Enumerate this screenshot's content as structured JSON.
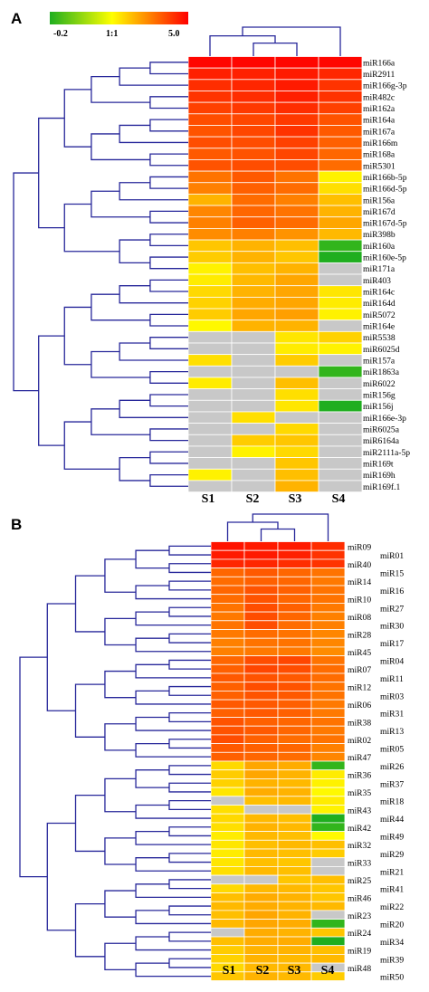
{
  "chart_data": [
    {
      "type": "heatmap",
      "panel": "A",
      "columns": [
        "S1",
        "S2",
        "S3",
        "S4"
      ],
      "color_scale": {
        "ticks": [
          "-0.2",
          "1:1",
          "5.0"
        ],
        "range": [
          -0.2,
          5.0
        ],
        "mid": 1.0,
        "colors": [
          "#1fae1f",
          "#ffff00",
          "#ff0000"
        ],
        "missing_color": "#c8c8c8"
      },
      "rows": [
        "miR166a",
        "miR2911",
        "miR166g-3p",
        "miR482c",
        "miR162a",
        "miR164a",
        "miR167a",
        "miR166m",
        "miR168a",
        "miR5301",
        "miR166b-5p",
        "miR166d-5p",
        "miR156a",
        "miR167d",
        "miR167d-5p",
        "miR398b",
        "miR160a",
        "miR160e-5p",
        "miR171a",
        "miR403",
        "miR164c",
        "miR164d",
        "miR5072",
        "miR164e",
        "miR5538",
        "miR6025d",
        "miR157a",
        "miR1863a",
        "miR6022",
        "miR156g",
        "miR156j",
        "miR166e-3p",
        "miR6025a",
        "miR6164a",
        "miR2111a-5p",
        "miR169t",
        "miR169h",
        "miR169f.1"
      ],
      "values": [
        [
          4.9,
          4.9,
          4.9,
          4.9
        ],
        [
          4.5,
          4.5,
          4.6,
          4.4
        ],
        [
          4.3,
          4.4,
          4.6,
          4.2
        ],
        [
          4.2,
          4.3,
          4.5,
          4.2
        ],
        [
          4.0,
          4.1,
          4.3,
          4.0
        ],
        [
          3.8,
          3.9,
          4.1,
          3.7
        ],
        [
          3.7,
          3.9,
          4.2,
          3.6
        ],
        [
          3.8,
          3.8,
          4.0,
          3.5
        ],
        [
          3.6,
          3.7,
          3.9,
          3.4
        ],
        [
          3.7,
          3.8,
          3.8,
          3.3
        ],
        [
          3.2,
          3.6,
          3.2,
          1.2
        ],
        [
          3.0,
          3.5,
          3.3,
          1.5
        ],
        [
          2.2,
          3.3,
          3.0,
          2.0
        ],
        [
          2.9,
          3.4,
          3.2,
          2.2
        ],
        [
          3.0,
          3.5,
          3.3,
          2.4
        ],
        [
          2.8,
          3.0,
          2.7,
          2.1
        ],
        [
          1.9,
          2.2,
          2.0,
          -0.1
        ],
        [
          1.8,
          2.2,
          1.9,
          -0.2
        ],
        [
          1.2,
          2.0,
          2.2,
          null
        ],
        [
          1.3,
          2.1,
          2.4,
          null
        ],
        [
          1.6,
          2.2,
          2.4,
          1.4
        ],
        [
          1.7,
          2.3,
          2.4,
          1.3
        ],
        [
          1.8,
          2.4,
          2.5,
          1.2
        ],
        [
          1.1,
          2.2,
          2.2,
          null
        ],
        [
          null,
          null,
          1.4,
          1.7
        ],
        [
          null,
          null,
          1.3,
          1.2
        ],
        [
          1.5,
          null,
          1.8,
          null
        ],
        [
          null,
          null,
          null,
          -0.1
        ],
        [
          1.3,
          null,
          2.0,
          null
        ],
        [
          null,
          null,
          1.5,
          null
        ],
        [
          null,
          null,
          1.4,
          -0.2
        ],
        [
          null,
          1.5,
          null,
          null
        ],
        [
          null,
          null,
          1.6,
          null
        ],
        [
          null,
          1.8,
          1.9,
          null
        ],
        [
          null,
          1.2,
          1.6,
          null
        ],
        [
          null,
          null,
          1.9,
          null
        ],
        [
          1.2,
          null,
          2.0,
          null
        ],
        [
          null,
          null,
          2.2,
          null
        ]
      ]
    },
    {
      "type": "heatmap",
      "panel": "B",
      "columns": [
        "S1",
        "S2",
        "S3",
        "S4"
      ],
      "color_scale": {
        "range": [
          -0.2,
          5.0
        ],
        "mid": 1.0,
        "colors": [
          "#1fae1f",
          "#ffff00",
          "#ff0000"
        ],
        "missing_color": "#c8c8c8"
      },
      "rows": [
        "miR09",
        "miR01",
        "miR40",
        "miR15",
        "miR14",
        "miR16",
        "miR10",
        "miR27",
        "miR08",
        "miR30",
        "miR28",
        "miR17",
        "miR45",
        "miR04",
        "miR07",
        "miR11",
        "miR12",
        "miR03",
        "miR06",
        "miR31",
        "miR38",
        "miR13",
        "miR02",
        "miR05",
        "miR47",
        "miR26",
        "miR36",
        "miR37",
        "miR35",
        "miR18",
        "miR43",
        "miR44",
        "miR42",
        "miR49",
        "miR32",
        "miR29",
        "miR33",
        "miR21",
        "miR25",
        "miR41",
        "miR46",
        "miR22",
        "miR23",
        "miR20",
        "miR24",
        "miR34",
        "miR19",
        "miR39",
        "miR48",
        "miR50"
      ],
      "values": [
        [
          4.7,
          4.6,
          4.6,
          4.3
        ],
        [
          4.6,
          4.6,
          4.5,
          4.2
        ],
        [
          4.4,
          4.4,
          4.3,
          4.2
        ],
        [
          3.4,
          3.6,
          3.4,
          3.2
        ],
        [
          3.3,
          3.5,
          3.4,
          3.1
        ],
        [
          3.4,
          3.7,
          3.5,
          3.2
        ],
        [
          3.3,
          3.7,
          3.4,
          3.2
        ],
        [
          3.2,
          3.8,
          3.5,
          3.1
        ],
        [
          3.1,
          3.8,
          3.4,
          3.0
        ],
        [
          3.2,
          3.8,
          3.3,
          3.0
        ],
        [
          3.1,
          3.3,
          3.2,
          2.9
        ],
        [
          3.0,
          3.2,
          3.2,
          2.9
        ],
        [
          3.0,
          3.1,
          3.1,
          2.8
        ],
        [
          3.4,
          3.8,
          3.9,
          3.2
        ],
        [
          3.5,
          3.9,
          3.8,
          3.3
        ],
        [
          3.6,
          3.7,
          3.6,
          3.3
        ],
        [
          3.5,
          3.8,
          3.7,
          3.2
        ],
        [
          3.5,
          3.7,
          3.6,
          3.2
        ],
        [
          3.6,
          3.6,
          3.5,
          3.1
        ],
        [
          3.5,
          3.6,
          3.5,
          3.1
        ],
        [
          3.7,
          3.5,
          3.4,
          3.2
        ],
        [
          3.7,
          3.6,
          3.4,
          3.1
        ],
        [
          3.8,
          3.5,
          3.3,
          3.2
        ],
        [
          3.6,
          3.5,
          3.4,
          3.0
        ],
        [
          3.5,
          3.4,
          3.3,
          2.9
        ],
        [
          1.6,
          2.4,
          2.3,
          -0.1
        ],
        [
          1.8,
          2.4,
          2.2,
          1.3
        ],
        [
          1.7,
          2.2,
          2.1,
          1.2
        ],
        [
          1.4,
          2.3,
          2.2,
          1.1
        ],
        [
          null,
          2.0,
          2.1,
          1.3
        ],
        [
          1.5,
          null,
          null,
          1.2
        ],
        [
          1.6,
          2.1,
          2.0,
          -0.2
        ],
        [
          1.5,
          2.2,
          2.1,
          -0.1
        ],
        [
          1.3,
          2.1,
          2.0,
          1.1
        ],
        [
          1.4,
          2.0,
          2.1,
          2.0
        ],
        [
          1.3,
          2.1,
          2.0,
          1.8
        ],
        [
          1.4,
          2.0,
          1.9,
          null
        ],
        [
          1.5,
          2.1,
          2.0,
          null
        ],
        [
          null,
          null,
          1.9,
          2.0
        ],
        [
          1.6,
          2.1,
          2.1,
          1.9
        ],
        [
          2.0,
          2.3,
          2.2,
          1.9
        ],
        [
          2.1,
          2.3,
          2.2,
          2.1
        ],
        [
          2.0,
          2.4,
          2.2,
          null
        ],
        [
          2.1,
          2.4,
          2.3,
          -0.1
        ],
        [
          null,
          2.3,
          2.2,
          1.9
        ],
        [
          2.0,
          2.3,
          2.3,
          -0.2
        ],
        [
          1.8,
          2.2,
          2.2,
          2.0
        ],
        [
          1.7,
          2.2,
          2.1,
          2.1
        ],
        [
          1.6,
          2.1,
          2.1,
          null
        ],
        [
          1.9,
          2.2,
          2.1,
          1.8
        ]
      ]
    }
  ]
}
